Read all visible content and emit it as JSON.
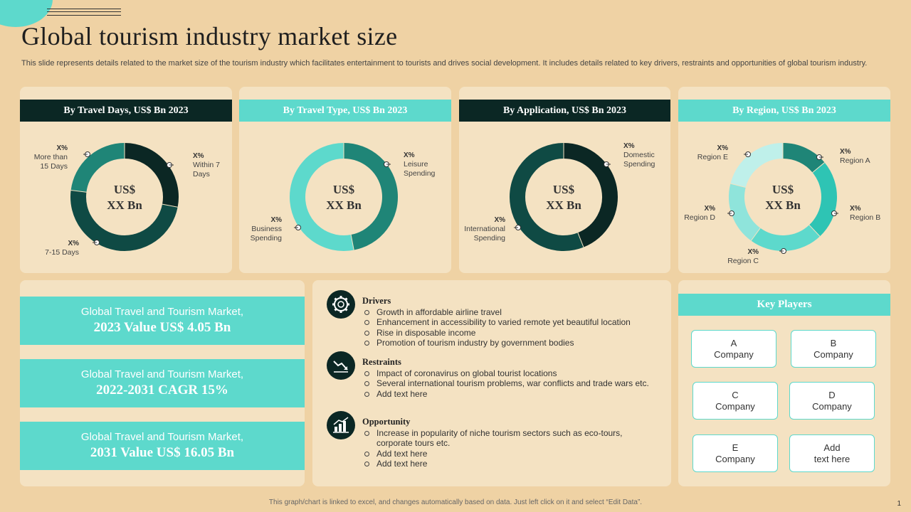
{
  "title": "Global tourism industry market size",
  "subtitle": "This slide represents details related to the market size of the tourism industry which facilitates entertainment to tourists and drives social development. It includes details related to key drivers, restraints and opportunities of global tourism industry.",
  "colors": {
    "background": "#efd2a4",
    "panel": "#f4e2c2",
    "dark": "#0b2724",
    "teal": "#5dd9cc"
  },
  "chart_data": [
    {
      "type": "pie",
      "title": "By Travel Days, US$ Bn 2023",
      "center_label": [
        "US$",
        "XX Bn"
      ],
      "categories": [
        "Within 7 Days",
        "7-15 Days",
        "More than 15 Days"
      ],
      "values": [
        28,
        49,
        23
      ],
      "colors": [
        "#0b2724",
        "#0f4a44",
        "#1f8577"
      ],
      "labels": [
        {
          "value": "X%",
          "name": [
            "Within 7",
            "Days"
          ]
        },
        {
          "value": "X%",
          "name": [
            "7-15 Days"
          ]
        },
        {
          "value": "X%",
          "name": [
            "More than",
            "15 Days"
          ]
        }
      ]
    },
    {
      "type": "pie",
      "title": "By Travel Type, US$ Bn 2023",
      "center_label": [
        "US$",
        "XX Bn"
      ],
      "categories": [
        "Leisure Spending",
        "Business Spending"
      ],
      "values": [
        47,
        53
      ],
      "colors": [
        "#1f8577",
        "#5dd9cc"
      ],
      "labels": [
        {
          "value": "X%",
          "name": [
            "Leisure",
            "Spending"
          ]
        },
        {
          "value": "X%",
          "name": [
            "Business",
            "Spending"
          ]
        }
      ]
    },
    {
      "type": "pie",
      "title": "By Application,  US$ Bn 2023",
      "center_label": [
        "US$",
        "XX Bn"
      ],
      "categories": [
        "Domestic Spending",
        "International Spending"
      ],
      "values": [
        44,
        56
      ],
      "colors": [
        "#0b2724",
        "#0f4a44"
      ],
      "labels": [
        {
          "value": "X%",
          "name": [
            "Domestic",
            "Spending"
          ]
        },
        {
          "value": "X%",
          "name": [
            "International",
            "Spending"
          ]
        }
      ]
    },
    {
      "type": "pie",
      "title": "By Region, US$ Bn 2023",
      "center_label": [
        "US$",
        "XX Bn"
      ],
      "categories": [
        "Region A",
        "Region B",
        "Region C",
        "Region D",
        "Region E"
      ],
      "values": [
        14,
        24,
        22,
        19,
        21
      ],
      "colors": [
        "#1f8577",
        "#2ec4b4",
        "#5dd9cc",
        "#8fe4db",
        "#bff0ea"
      ],
      "labels": [
        {
          "value": "X%",
          "name": [
            "Region A"
          ]
        },
        {
          "value": "X%",
          "name": [
            "Region B"
          ]
        },
        {
          "value": "X%",
          "name": [
            "Region C"
          ]
        },
        {
          "value": "X%",
          "name": [
            "Region D"
          ]
        },
        {
          "value": "X%",
          "name": [
            "Region E"
          ]
        }
      ]
    }
  ],
  "stats": [
    {
      "line1": "Global Travel and Tourism Market,",
      "line2": "2023 Value US$ 4.05 Bn"
    },
    {
      "line1": "Global Travel and Tourism Market,",
      "line2": "2022-2031 CAGR 15%"
    },
    {
      "line1": "Global Travel and Tourism Market,",
      "line2": "2031 Value US$ 16.05 Bn"
    }
  ],
  "sections": {
    "drivers": {
      "title": "Drivers",
      "icon": "gear-globe-icon",
      "items": [
        "Growth in affordable airline travel",
        "Enhancement in accessibility to varied remote yet beautiful location",
        "Rise in disposable income",
        "Promotion of tourism industry by government bodies"
      ]
    },
    "restraints": {
      "title": "Restraints",
      "icon": "decline-chart-icon",
      "items": [
        "Impact of coronavirus on global tourist locations",
        "Several international tourism problems, war conflicts and trade wars etc.",
        "Add text here"
      ]
    },
    "opportunity": {
      "title": "Opportunity",
      "icon": "growth-chart-icon",
      "items": [
        "Increase in popularity of niche tourism sectors such as eco-tours, corporate tours etc.",
        "Add text here",
        "Add text here"
      ]
    }
  },
  "key_players": {
    "title": "Key Players",
    "items": [
      {
        "line1": "A",
        "line2": "Company"
      },
      {
        "line1": "B",
        "line2": "Company"
      },
      {
        "line1": "C",
        "line2": "Company"
      },
      {
        "line1": "D",
        "line2": "Company"
      },
      {
        "line1": "E",
        "line2": "Company"
      },
      {
        "line1": "Add",
        "line2": "text here"
      }
    ]
  },
  "footer": "This graph/chart is linked to excel, and changes automatically based on data. Just left click on it and select “Edit Data”.",
  "page_number": "1"
}
